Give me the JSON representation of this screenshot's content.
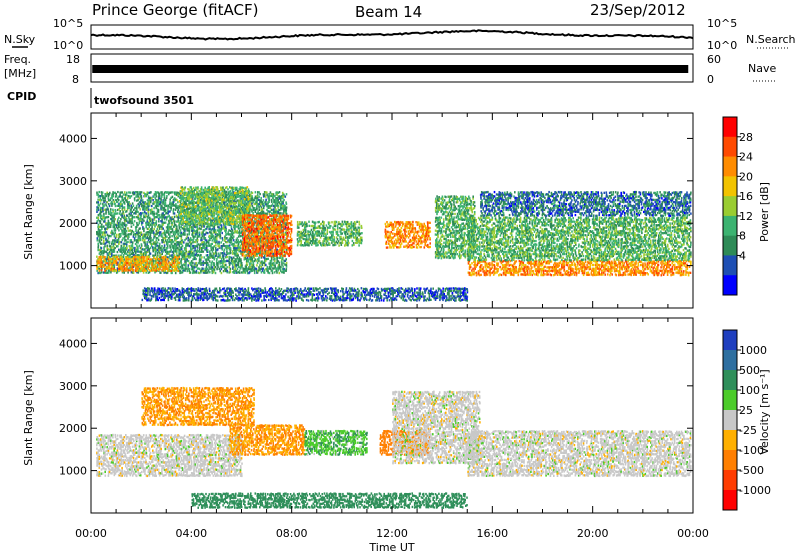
{
  "header": {
    "station": "Prince George (fitACF)",
    "beam": "Beam 14",
    "date": "23/Sep/2012"
  },
  "noise_panel": {
    "left_label": "N.Sky",
    "right_label": "N.Search",
    "left_ticks": [
      "10^5",
      "10^0"
    ],
    "right_ticks": [
      "10^5",
      "10^0"
    ]
  },
  "freq_panel": {
    "left_label_line1": "Freq.",
    "left_label_line2": "[MHz]",
    "right_label": "Nave",
    "left_ticks": [
      "18",
      "8"
    ],
    "right_ticks": [
      "60",
      "0"
    ]
  },
  "cpid_panel": {
    "label": "CPID",
    "value": "twofsound 3501"
  },
  "colorbars": {
    "power": {
      "label": "Power [dB]",
      "ticks": [
        "28",
        "24",
        "20",
        "16",
        "12",
        "8",
        "4"
      ],
      "colors": [
        "#ff0000",
        "#ff4a00",
        "#ff8c00",
        "#f2c300",
        "#9acd32",
        "#3cb371",
        "#2e8b57",
        "#1e4fb4",
        "#0000ff"
      ]
    },
    "velocity": {
      "label": "Velocity [m s⁻¹]",
      "ticks": [
        "1000",
        "500",
        "100",
        "25",
        "-25",
        "-100",
        "-500",
        "-1000"
      ],
      "colors": [
        "#1f3fbf",
        "#2e6fa0",
        "#2f8f5a",
        "#4ccc2a",
        "#c8c8c8",
        "#ffb000",
        "#ff7f00",
        "#ff3c00",
        "#ff0000"
      ]
    }
  },
  "chart_data": [
    {
      "type": "heatmap",
      "name": "power",
      "ylabel": "Slant Range [km]",
      "xlabel": "Time UT",
      "x_ticks": [
        "00:00",
        "04:00",
        "08:00",
        "12:00",
        "16:00",
        "20:00",
        "00:00"
      ],
      "y_ticks": [
        1000,
        2000,
        3000,
        4000
      ],
      "ylim": [
        0,
        4600
      ],
      "xlim_hours": [
        0,
        24
      ],
      "scatter_regions": [
        {
          "t0": 0.2,
          "t1": 7.8,
          "r0": 850,
          "r1": 2800,
          "value": 10
        },
        {
          "t0": 0.2,
          "t1": 3.5,
          "r0": 900,
          "r1": 1250,
          "value": 22
        },
        {
          "t0": 3.5,
          "t1": 6.3,
          "r0": 2000,
          "r1": 2900,
          "value": 14
        },
        {
          "t0": 6.0,
          "t1": 8.0,
          "r0": 1250,
          "r1": 2250,
          "value": 26
        },
        {
          "t0": 8.2,
          "t1": 10.8,
          "r0": 1500,
          "r1": 2100,
          "value": 12
        },
        {
          "t0": 11.7,
          "t1": 13.5,
          "r0": 1450,
          "r1": 2100,
          "value": 24
        },
        {
          "t0": 13.7,
          "t1": 15.3,
          "r0": 1200,
          "r1": 2700,
          "value": 12
        },
        {
          "t0": 15.0,
          "t1": 23.9,
          "r0": 800,
          "r1": 1150,
          "value": 24
        },
        {
          "t0": 15.0,
          "t1": 23.9,
          "r0": 1150,
          "r1": 2200,
          "value": 12
        },
        {
          "t0": 15.5,
          "t1": 23.9,
          "r0": 2200,
          "r1": 2800,
          "value": 6
        },
        {
          "t0": 2.0,
          "t1": 15.0,
          "r0": 200,
          "r1": 500,
          "value": 5
        }
      ]
    },
    {
      "type": "heatmap",
      "name": "velocity",
      "ylabel": "Slant Range [km]",
      "xlabel": "Time UT",
      "x_ticks": [
        "00:00",
        "04:00",
        "08:00",
        "12:00",
        "16:00",
        "20:00",
        "00:00"
      ],
      "y_ticks": [
        1000,
        2000,
        3000,
        4000
      ],
      "ylim": [
        0,
        4600
      ],
      "xlim_hours": [
        0,
        24
      ],
      "scatter_regions": [
        {
          "t0": 0.2,
          "t1": 6.0,
          "r0": 900,
          "r1": 1900,
          "value": 0
        },
        {
          "t0": 2.0,
          "t1": 6.5,
          "r0": 2100,
          "r1": 3000,
          "value": -100
        },
        {
          "t0": 5.5,
          "t1": 8.5,
          "r0": 1400,
          "r1": 2100,
          "value": -100
        },
        {
          "t0": 8.5,
          "t1": 11.0,
          "r0": 1400,
          "r1": 2000,
          "value": 50
        },
        {
          "t0": 11.5,
          "t1": 13.5,
          "r0": 1400,
          "r1": 2000,
          "value": -200
        },
        {
          "t0": 12.0,
          "t1": 15.5,
          "r0": 1200,
          "r1": 2900,
          "value": 0
        },
        {
          "t0": 15.0,
          "t1": 23.9,
          "r0": 900,
          "r1": 2000,
          "value": 0
        },
        {
          "t0": 4.0,
          "t1": 15.0,
          "r0": 150,
          "r1": 500,
          "value": 100
        }
      ]
    }
  ]
}
